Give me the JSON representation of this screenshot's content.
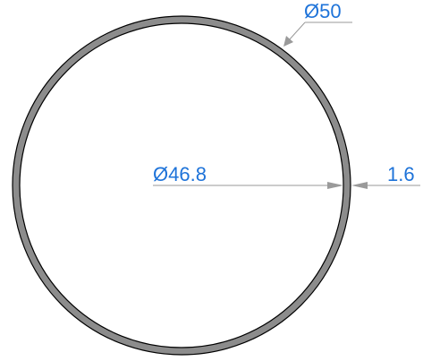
{
  "drawing": {
    "outer_diameter_label": "Ø50",
    "inner_diameter_label": "Ø46.8",
    "wall_thickness_label": "1.6"
  },
  "colors": {
    "ring_fill": "#8c8c8c",
    "ring_outline": "#000000",
    "dimension_text": "#1e73d9",
    "dimension_line": "#9a9a9a"
  }
}
